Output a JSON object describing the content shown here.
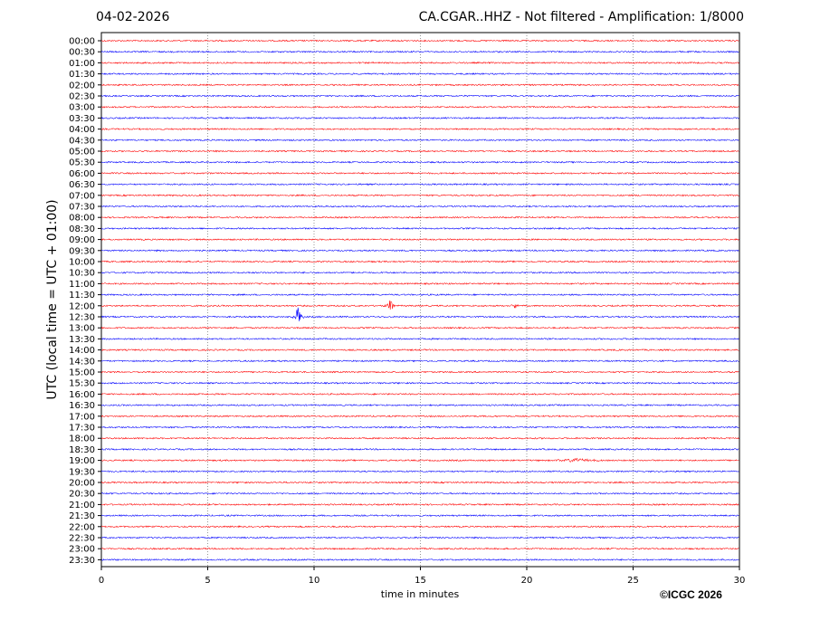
{
  "header": {
    "date": "04-02-2026",
    "station_title": "CA.CGAR..HHZ - Not filtered - Amplification: 1/8000"
  },
  "footer": {
    "copyright": "©ICGC 2026"
  },
  "chart_data": {
    "type": "line",
    "title": "CA.CGAR..HHZ - Not filtered - Amplification: 1/8000",
    "xlabel": "time in minutes",
    "ylabel": "UTC (local time = UTC + 01:00)",
    "xlim": [
      0,
      30
    ],
    "x_ticks": [
      0,
      5,
      10,
      15,
      20,
      25,
      30
    ],
    "grid": "vertical dotted at 5-minute intervals",
    "row_labels": [
      "00:00",
      "00:30",
      "01:00",
      "01:30",
      "02:00",
      "02:30",
      "03:00",
      "03:30",
      "04:00",
      "04:30",
      "05:00",
      "05:30",
      "06:00",
      "06:30",
      "07:00",
      "07:30",
      "08:00",
      "08:30",
      "09:00",
      "09:30",
      "10:00",
      "10:30",
      "11:00",
      "11:30",
      "12:00",
      "12:30",
      "13:00",
      "13:30",
      "14:00",
      "14:30",
      "15:00",
      "15:30",
      "16:00",
      "16:30",
      "17:00",
      "17:30",
      "18:00",
      "18:30",
      "19:00",
      "19:30",
      "20:00",
      "20:30",
      "21:00",
      "21:30",
      "22:00",
      "22:30",
      "23:00",
      "23:30"
    ],
    "row_colors": [
      "#ff0000",
      "#0000ff"
    ],
    "events": [
      {
        "row": "12:00",
        "minute": 13.6,
        "relative_amplitude": 0.55,
        "color": "#ff0000"
      },
      {
        "row": "12:00",
        "minute": 19.4,
        "relative_amplitude": 0.35,
        "color": "#ff0000"
      },
      {
        "row": "12:30",
        "minute": 9.25,
        "relative_amplitude": 1.0,
        "color": "#0000ff"
      },
      {
        "row": "19:00",
        "minute": 22.3,
        "relative_amplitude": 0.12,
        "color": "#ff0000"
      }
    ]
  }
}
